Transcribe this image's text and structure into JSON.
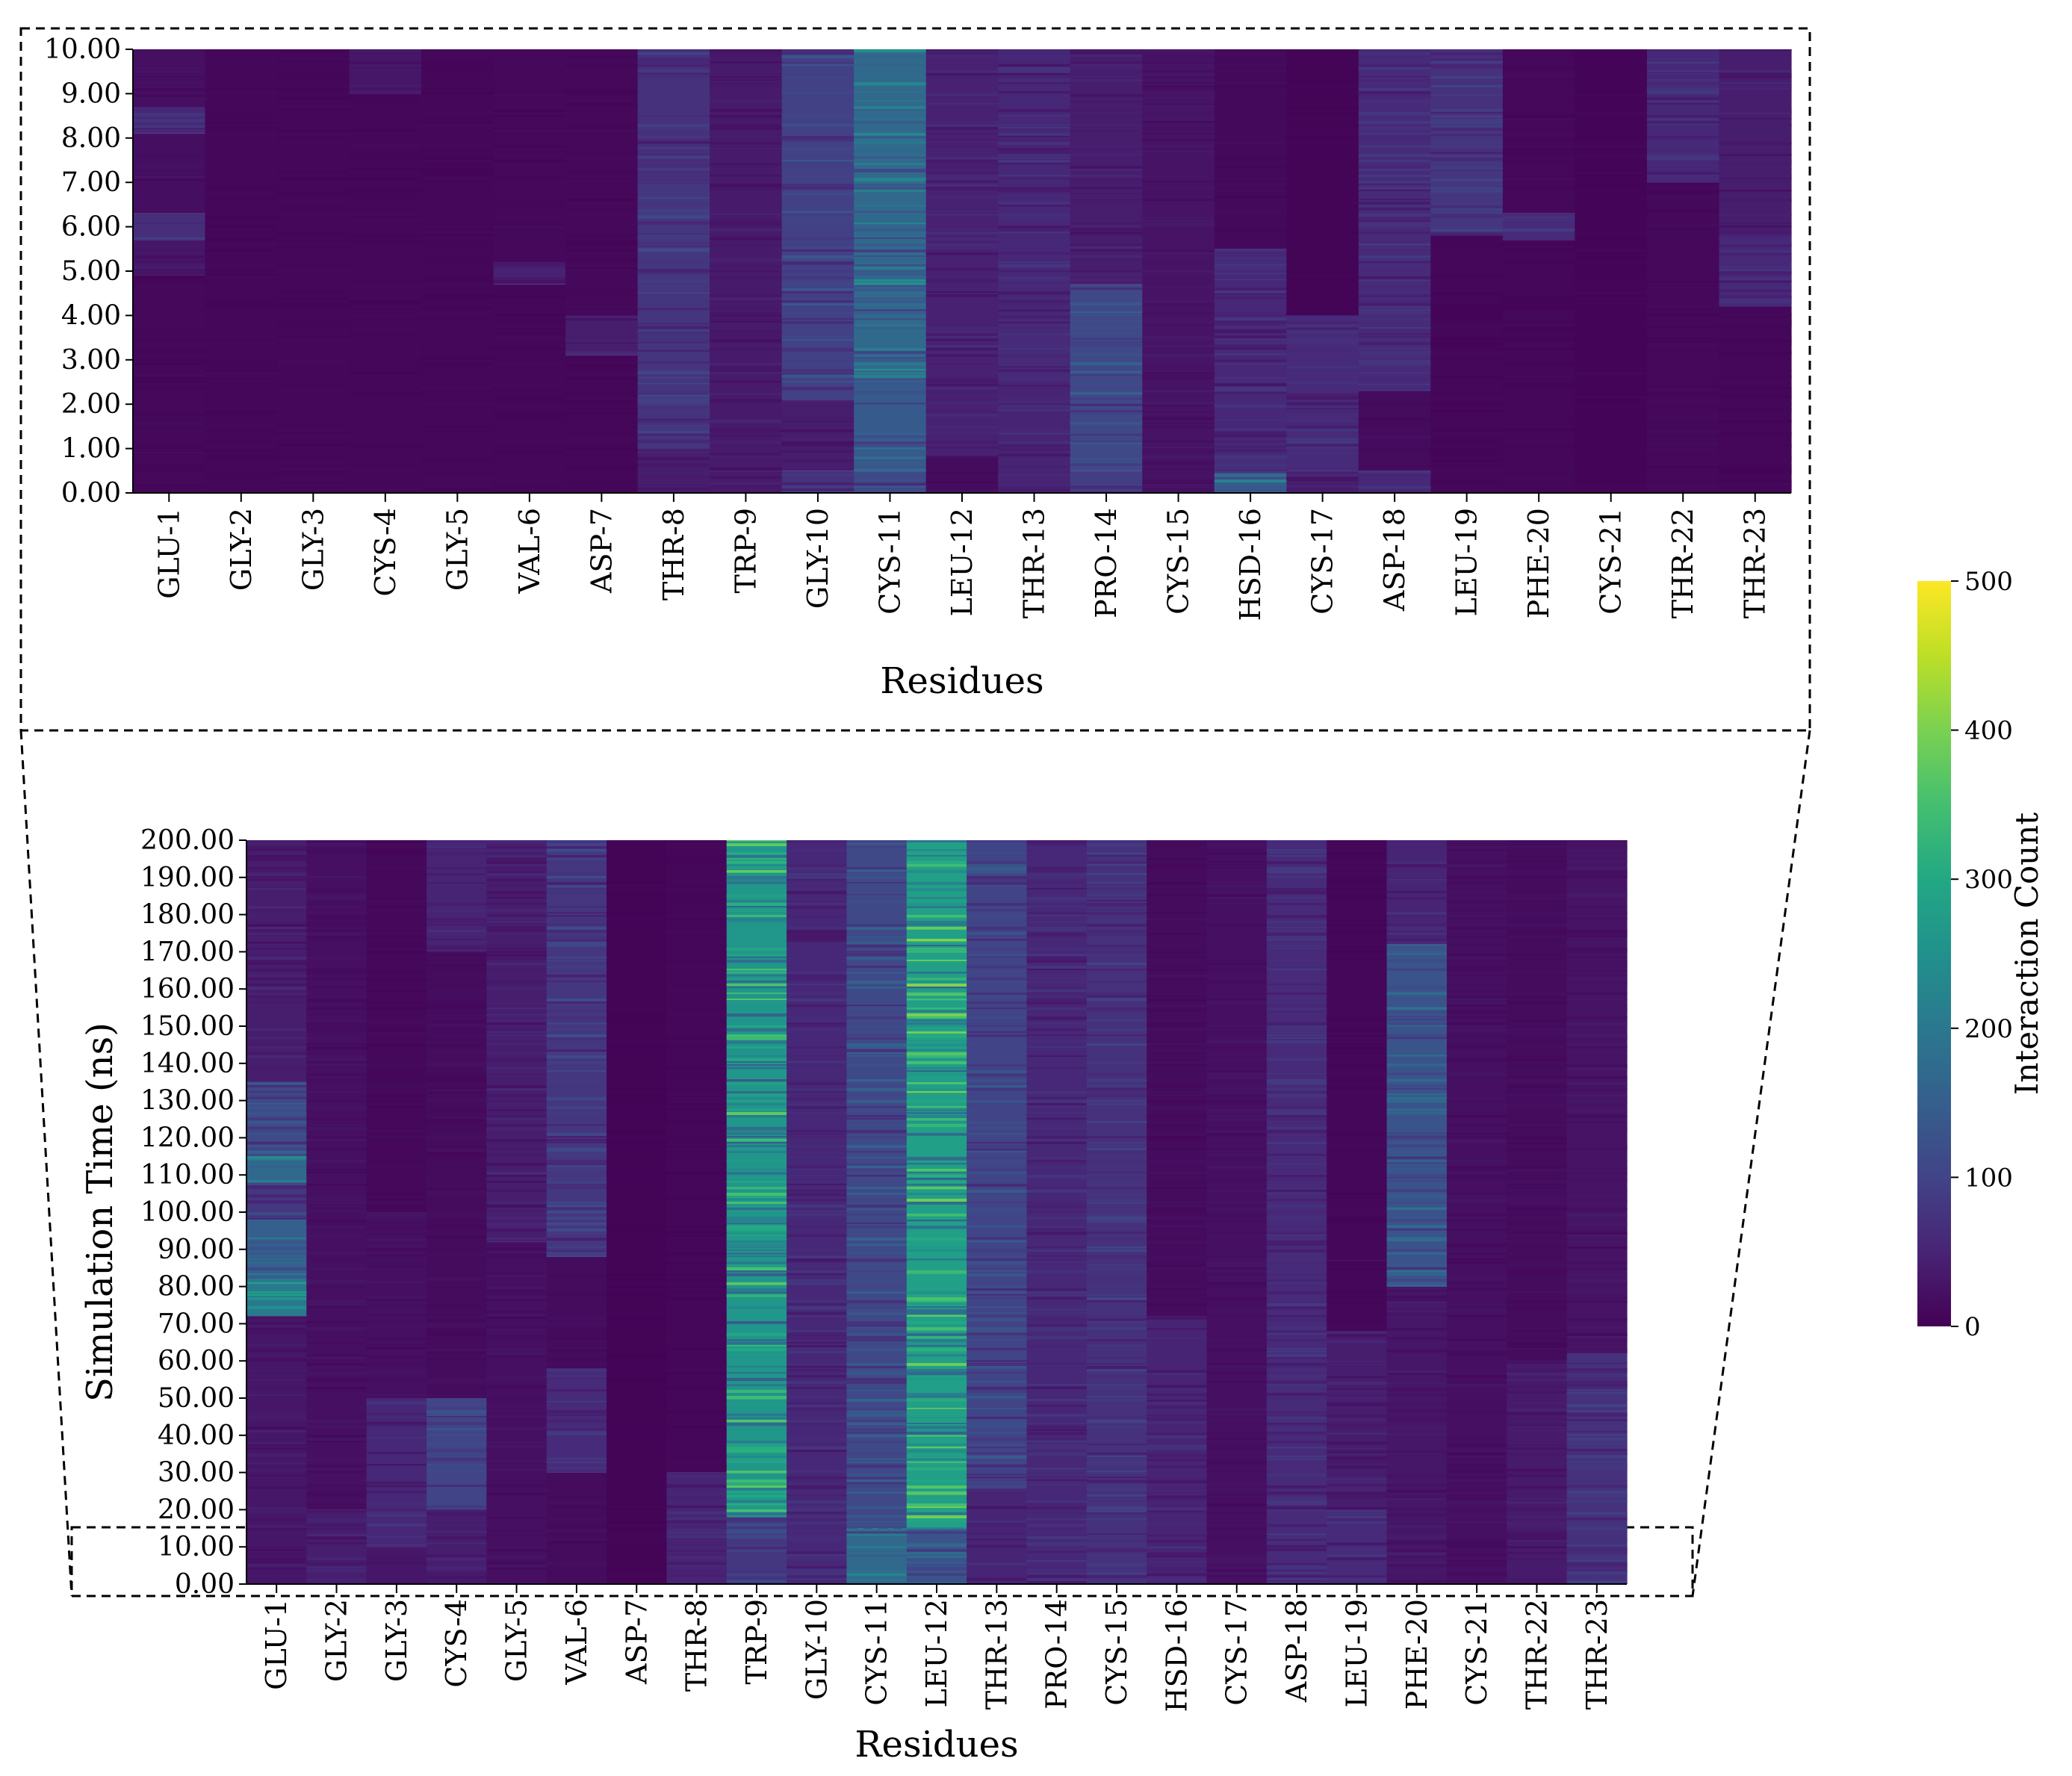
{
  "chart_data": [
    {
      "type": "heatmap",
      "name": "zoom-panel",
      "xlabel": "Residues",
      "ylabel": "",
      "ylim": [
        0,
        10
      ],
      "yticks": [
        "0.00",
        "1.00",
        "2.00",
        "3.00",
        "4.00",
        "5.00",
        "6.00",
        "7.00",
        "8.00",
        "9.00",
        "10.00"
      ],
      "categories": [
        "GLU-1",
        "GLY-2",
        "GLY-3",
        "CYS-4",
        "GLY-5",
        "VAL-6",
        "ASP-7",
        "THR-8",
        "TRP-9",
        "GLY-10",
        "CYS-11",
        "LEU-12",
        "THR-13",
        "PRO-14",
        "CYS-15",
        "HSD-16",
        "CYS-17",
        "ASP-18",
        "LEU-19",
        "PHE-20",
        "CYS-21",
        "THR-22",
        "THR-23"
      ],
      "segments": [
        [
          [
            0,
            4.9,
            10
          ],
          [
            4.9,
            5.7,
            30
          ],
          [
            5.7,
            6.3,
            65
          ],
          [
            6.3,
            8.1,
            18
          ],
          [
            8.1,
            8.7,
            55
          ],
          [
            8.7,
            10,
            20
          ]
        ],
        [
          [
            0,
            10,
            8
          ]
        ],
        [
          [
            0,
            10,
            8
          ]
        ],
        [
          [
            0,
            9,
            8
          ],
          [
            9,
            10,
            30
          ]
        ],
        [
          [
            0,
            10,
            8
          ]
        ],
        [
          [
            0,
            4.7,
            8
          ],
          [
            4.7,
            5.2,
            45
          ],
          [
            5.2,
            10,
            10
          ]
        ],
        [
          [
            0,
            3.1,
            8
          ],
          [
            3.1,
            4,
            40
          ],
          [
            4,
            10,
            10
          ]
        ],
        [
          [
            0,
            1,
            40
          ],
          [
            1,
            4.5,
            75
          ],
          [
            4.5,
            7,
            80
          ],
          [
            7,
            8,
            65
          ],
          [
            8,
            10,
            70
          ]
        ],
        [
          [
            0,
            10,
            35
          ]
        ],
        [
          [
            0,
            0.5,
            70
          ],
          [
            0.5,
            2.1,
            40
          ],
          [
            2.1,
            10,
            95
          ]
        ],
        [
          [
            0,
            0.5,
            110
          ],
          [
            0.5,
            2.5,
            140
          ],
          [
            2.5,
            10,
            170
          ]
        ],
        [
          [
            0,
            0.8,
            15
          ],
          [
            0.8,
            10,
            45
          ]
        ],
        [
          [
            0,
            2.5,
            50
          ],
          [
            2.5,
            4,
            60
          ],
          [
            4,
            10,
            55
          ]
        ],
        [
          [
            0,
            0.5,
            90
          ],
          [
            0.5,
            4.7,
            110
          ],
          [
            4.7,
            10,
            40
          ]
        ],
        [
          [
            0,
            10,
            25
          ]
        ],
        [
          [
            0,
            0.3,
            180
          ],
          [
            0.3,
            0.5,
            120
          ],
          [
            0.5,
            5.5,
            55
          ],
          [
            5.5,
            10,
            12
          ]
        ],
        [
          [
            0,
            0.5,
            40
          ],
          [
            0.5,
            4,
            60
          ],
          [
            4,
            10,
            5
          ]
        ],
        [
          [
            0,
            0.5,
            55
          ],
          [
            0.5,
            2.3,
            15
          ],
          [
            2.3,
            10,
            60
          ]
        ],
        [
          [
            0,
            5.8,
            8
          ],
          [
            5.8,
            8.5,
            80
          ],
          [
            8.5,
            10,
            70
          ]
        ],
        [
          [
            0,
            5.7,
            8
          ],
          [
            5.7,
            6.3,
            60
          ],
          [
            6.3,
            10,
            10
          ]
        ],
        [
          [
            0,
            10,
            6
          ]
        ],
        [
          [
            0,
            7,
            10
          ],
          [
            7,
            10,
            55
          ]
        ],
        [
          [
            0,
            4.2,
            8
          ],
          [
            4.2,
            5.8,
            55
          ],
          [
            5.8,
            10,
            40
          ]
        ]
      ]
    },
    {
      "type": "heatmap",
      "name": "full-panel",
      "xlabel": "Residues",
      "ylabel": "Simulation Time (ns)",
      "ylim": [
        0,
        200
      ],
      "yticks": [
        "0.00",
        "10.00",
        "20.00",
        "30.00",
        "40.00",
        "50.00",
        "60.00",
        "70.00",
        "80.00",
        "90.00",
        "100.00",
        "110.00",
        "120.00",
        "130.00",
        "140.00",
        "150.00",
        "160.00",
        "170.00",
        "180.00",
        "190.00",
        "200.00"
      ],
      "categories": [
        "GLU-1",
        "GLY-2",
        "GLY-3",
        "CYS-4",
        "GLY-5",
        "VAL-6",
        "ASP-7",
        "THR-8",
        "TRP-9",
        "GLY-10",
        "CYS-11",
        "LEU-12",
        "THR-13",
        "PRO-14",
        "CYS-15",
        "HSD-16",
        "CYS-17",
        "ASP-18",
        "LEU-19",
        "PHE-20",
        "CYS-21",
        "THR-22",
        "THR-23"
      ],
      "segments": [
        [
          [
            0,
            72,
            30
          ],
          [
            72,
            82,
            200
          ],
          [
            82,
            98,
            150
          ],
          [
            98,
            108,
            80
          ],
          [
            108,
            115,
            170
          ],
          [
            115,
            135,
            110
          ],
          [
            135,
            200,
            40
          ]
        ],
        [
          [
            0,
            20,
            40
          ],
          [
            20,
            200,
            20
          ]
        ],
        [
          [
            0,
            10,
            30
          ],
          [
            10,
            50,
            55
          ],
          [
            50,
            100,
            20
          ],
          [
            100,
            200,
            10
          ]
        ],
        [
          [
            0,
            20,
            40
          ],
          [
            20,
            50,
            100
          ],
          [
            50,
            170,
            15
          ],
          [
            170,
            200,
            50
          ]
        ],
        [
          [
            0,
            92,
            20
          ],
          [
            92,
            200,
            40
          ]
        ],
        [
          [
            0,
            30,
            15
          ],
          [
            30,
            58,
            60
          ],
          [
            58,
            88,
            15
          ],
          [
            88,
            200,
            80
          ]
        ],
        [
          [
            0,
            200,
            5
          ]
        ],
        [
          [
            0,
            30,
            50
          ],
          [
            30,
            200,
            8
          ]
        ],
        [
          [
            0,
            18,
            80
          ],
          [
            18,
            200,
            260
          ]
        ],
        [
          [
            0,
            200,
            55
          ]
        ],
        [
          [
            0,
            15,
            170
          ],
          [
            15,
            200,
            110
          ]
        ],
        [
          [
            0,
            15,
            130
          ],
          [
            15,
            200,
            280
          ]
        ],
        [
          [
            0,
            25,
            50
          ],
          [
            25,
            200,
            100
          ]
        ],
        [
          [
            0,
            200,
            55
          ]
        ],
        [
          [
            0,
            200,
            70
          ]
        ],
        [
          [
            0,
            72,
            50
          ],
          [
            72,
            200,
            15
          ]
        ],
        [
          [
            0,
            200,
            20
          ]
        ],
        [
          [
            0,
            200,
            60
          ]
        ],
        [
          [
            0,
            20,
            60
          ],
          [
            20,
            68,
            40
          ],
          [
            68,
            87,
            8
          ],
          [
            87,
            200,
            8
          ]
        ],
        [
          [
            0,
            80,
            30
          ],
          [
            80,
            172,
            130
          ],
          [
            172,
            200,
            50
          ]
        ],
        [
          [
            0,
            200,
            20
          ]
        ],
        [
          [
            0,
            60,
            35
          ],
          [
            60,
            200,
            15
          ]
        ],
        [
          [
            0,
            62,
            70
          ],
          [
            62,
            200,
            25
          ]
        ]
      ]
    }
  ],
  "colorbar": {
    "label": "Interaction Count",
    "min": 0,
    "max": 500,
    "ticks": [
      "0",
      "100",
      "200",
      "300",
      "400",
      "500"
    ]
  }
}
